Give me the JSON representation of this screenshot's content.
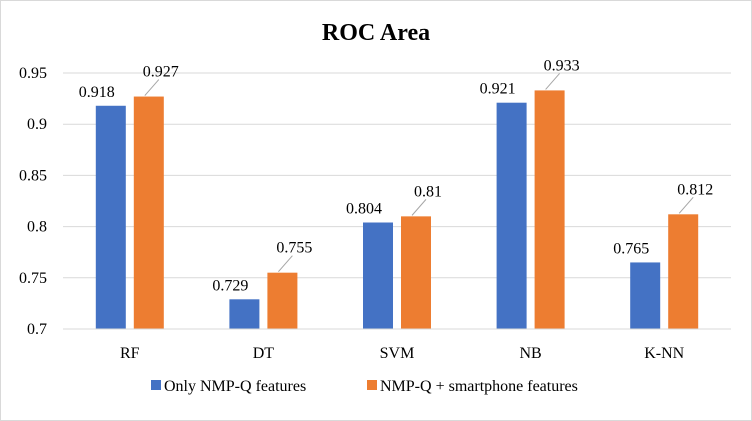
{
  "chart_data": {
    "type": "bar",
    "title": "ROC Area",
    "categories": [
      "RF",
      "DT",
      "SVM",
      "NB",
      "K-NN"
    ],
    "series": [
      {
        "name": "Only NMP-Q features",
        "values": [
          0.918,
          0.729,
          0.804,
          0.921,
          0.765
        ],
        "color": "#4472c4"
      },
      {
        "name": "NMP-Q + smartphone features",
        "values": [
          0.927,
          0.755,
          0.81,
          0.933,
          0.812
        ],
        "color": "#ed7d31"
      }
    ],
    "data_labels": [
      [
        "0.918",
        "0.729",
        "0.804",
        "0.921",
        "0.765"
      ],
      [
        "0.927",
        "0.755",
        "0.81",
        "0.933",
        "0.812"
      ]
    ],
    "ylim": [
      0.7,
      0.95
    ],
    "yticks": [
      0.7,
      0.75,
      0.8,
      0.85,
      0.9,
      0.95
    ],
    "ytick_labels": [
      "0.7",
      "0.75",
      "0.8",
      "0.85",
      "0.9",
      "0.95"
    ],
    "xlabel": "",
    "ylabel": "",
    "grid": true,
    "legend_position": "bottom",
    "gridline_color": "#d9d9d9"
  }
}
